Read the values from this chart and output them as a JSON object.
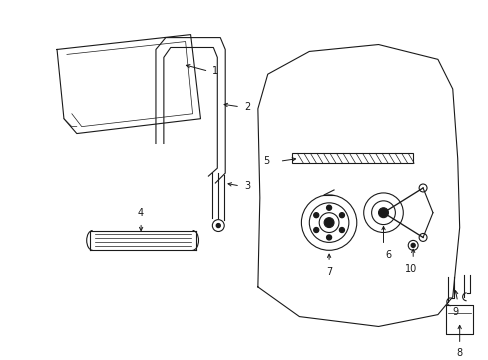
{
  "background_color": "#ffffff",
  "line_color": "#1a1a1a",
  "figsize": [
    4.89,
    3.6
  ],
  "dpi": 100,
  "lw": 0.8,
  "tlw": 0.5,
  "fs": 7.0
}
